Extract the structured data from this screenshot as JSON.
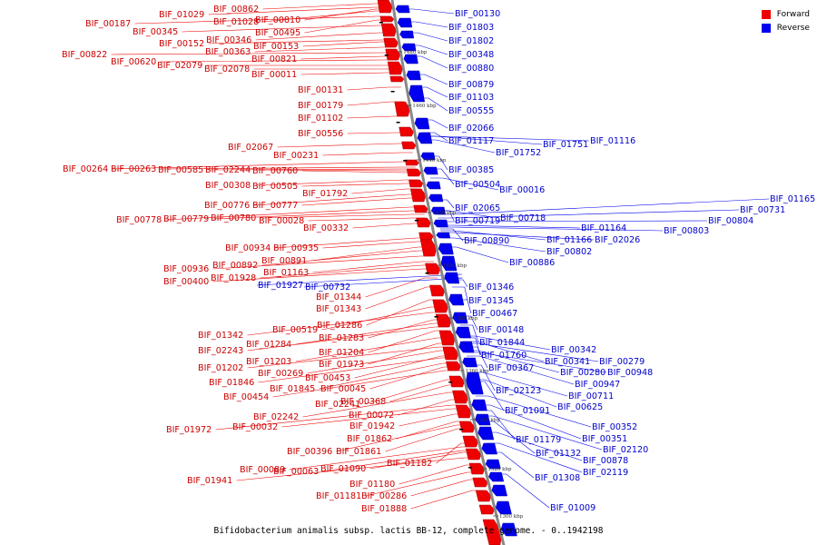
{
  "legend": {
    "forward": {
      "label": "Forward",
      "color": "#ee0000"
    },
    "reverse": {
      "label": "Reverse",
      "color": "#0000ee"
    }
  },
  "caption": "Bifidobacterium animalis subsp. lactis BB-12, complete genome. - 0..1942198",
  "scale_ticks": [
    "1480 kbp",
    "1460 kbp",
    "1440 kbp",
    "1420 kbp",
    "1400 kbp",
    "1380 kbp",
    "1360 kbp",
    "1340 kbp",
    "1320 kbp",
    "1300 kbp"
  ],
  "forward_labels": [
    "BIF_01029",
    "BIF_00862",
    "BIF_00187",
    "BIF_01028",
    "BIF_00810",
    "BIF_00345",
    "BIF_00495",
    "BIF_00152",
    "BIF_00346",
    "BIF_00153",
    "BIF_00363",
    "BIF_00822",
    "BIF_00821",
    "BIF_00620",
    "BIF_02079",
    "BIF_02078",
    "BIF_00011",
    "BIF_00131",
    "BIF_00179",
    "BIF_01102",
    "BIF_00556",
    "BIF_02067",
    "BIF_00231",
    "BIF_00264",
    "BIF_00263",
    "BIF_00585",
    "BIF_02244",
    "BIF_00760",
    "BIF_00308",
    "BIF_00505",
    "BIF_01792",
    "BIF_00776",
    "BIF_00777",
    "BIF_00778",
    "BIF_00779",
    "BIF_00780",
    "BIF_00028",
    "BIF_00332",
    "BIF_00934",
    "BIF_00935",
    "BIF_00892",
    "BIF_00891",
    "BIF_00936",
    "BIF_01163",
    "BIF_00400",
    "BIF_01928",
    "BIF_01344",
    "BIF_01343",
    "BIF_01286",
    "BIF_00519",
    "BIF_01342",
    "BIF_01283",
    "BIF_01284",
    "BIF_02243",
    "BIF_01204",
    "BIF_01203",
    "BIF_01973",
    "BIF_01202",
    "BIF_00269",
    "BIF_00453",
    "BIF_01846",
    "BIF_01845",
    "BIF_00045",
    "BIF_00454",
    "BIF_02241",
    "BIF_00368",
    "BIF_02242",
    "BIF_00072",
    "BIF_01972",
    "BIF_00032",
    "BIF_01942",
    "BIF_01862",
    "BIF_00396",
    "BIF_01861",
    "BIF_01182",
    "BIF_00089",
    "BIF_00063",
    "BIF_01090",
    "BIF_01941",
    "BIF_01180",
    "BIF_01181",
    "BIF_00286",
    "BIF_01888"
  ],
  "reverse_labels": [
    "BIF_00130",
    "BIF_01803",
    "BIF_01802",
    "BIF_00348",
    "BIF_00880",
    "BIF_00879",
    "BIF_01103",
    "BIF_00555",
    "BIF_02066",
    "BIF_01117",
    "BIF_01751",
    "BIF_01116",
    "BIF_01752",
    "BIF_00385",
    "BIF_00504",
    "BIF_00016",
    "BIF_01165",
    "BIF_02065",
    "BIF_00731",
    "BIF_00718",
    "BIF_00719",
    "BIF_00804",
    "BIF_01164",
    "BIF_00803",
    "BIF_00890",
    "BIF_01166",
    "BIF_02026",
    "BIF_00802",
    "BIF_00886",
    "BIF_01927",
    "BIF_00732",
    "BIF_01346",
    "BIF_01345",
    "BIF_00467",
    "BIF_00148",
    "BIF_01844",
    "BIF_00342",
    "BIF_01760",
    "BIF_00341",
    "BIF_00279",
    "BIF_00367",
    "BIF_00280",
    "BIF_00948",
    "BIF_00947",
    "BIF_02123",
    "BIF_00711",
    "BIF_00625",
    "BIF_01091",
    "BIF_00352",
    "BIF_01179",
    "BIF_00351",
    "BIF_02120",
    "BIF_01132",
    "BIF_00878",
    "BIF_02119",
    "BIF_01308",
    "BIF_01009"
  ]
}
